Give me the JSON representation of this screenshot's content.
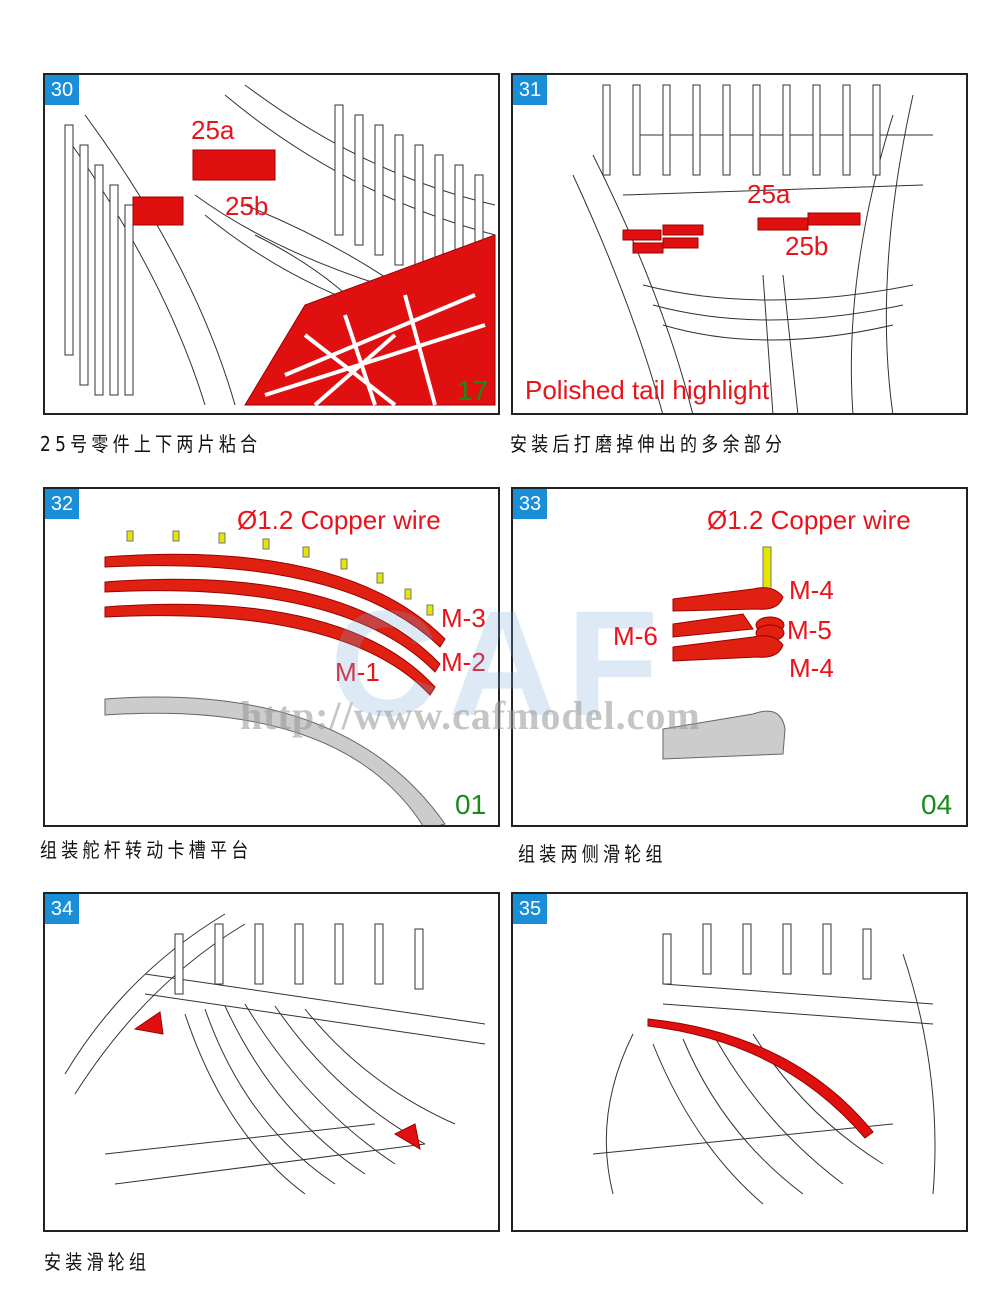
{
  "panels": [
    {
      "step": "30",
      "labels": [
        "25a",
        "25b"
      ],
      "part_ref": "17",
      "caption": "25号零件上下两片粘合"
    },
    {
      "step": "31",
      "labels": [
        "25a",
        "25b"
      ],
      "note": "Polished tail highlight",
      "caption": "安装后打磨掉伸出的多余部分"
    },
    {
      "step": "32",
      "labels": [
        "Ø1.2 Copper wire",
        "M-3",
        "M-2",
        "M-1"
      ],
      "part_ref": "01",
      "caption": "组装舵杆转动卡槽平台"
    },
    {
      "step": "33",
      "labels": [
        "Ø1.2 Copper wire",
        "M-4",
        "M-5",
        "M-6",
        "M-4"
      ],
      "part_ref": "04",
      "caption": "组装两侧滑轮组"
    },
    {
      "step": "34"
    },
    {
      "step": "35",
      "caption": "安装滑轮组"
    }
  ],
  "watermark": {
    "logo": "CAF",
    "url": "http://www.cafmodel.com"
  },
  "colors": {
    "badge": "#1a8fd8",
    "highlight": "#e8131b",
    "part_ref": "#1a8a1a"
  }
}
